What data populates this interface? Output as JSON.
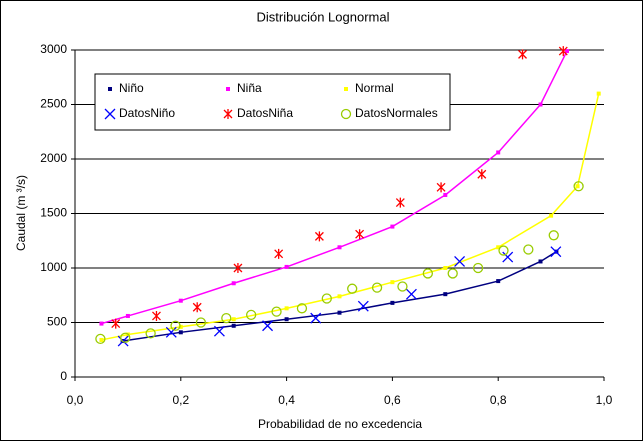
{
  "chart_data": {
    "type": "scatter",
    "title": "Distribución Lognormal",
    "x_label": "Probabilidad de no excedencia",
    "y_label": "Caudal (m ³/s)",
    "xlim": [
      0,
      1
    ],
    "ylim": [
      0,
      3000
    ],
    "xticks": [
      {
        "value": 0,
        "label": "0,0"
      },
      {
        "value": 0.2,
        "label": "0,2"
      },
      {
        "value": 0.4,
        "label": "0,4"
      },
      {
        "value": 0.6,
        "label": "0,6"
      },
      {
        "value": 0.8,
        "label": "0,8"
      },
      {
        "value": 1,
        "label": "1,0"
      }
    ],
    "yticks": [
      0,
      500,
      1000,
      1500,
      2000,
      2500,
      3000
    ],
    "grid": true,
    "series": [
      {
        "name": "Niño",
        "color": "#000080",
        "mode": "lines",
        "marker": "square",
        "x": [
          0.09,
          0.2,
          0.3,
          0.4,
          0.5,
          0.6,
          0.7,
          0.8,
          0.88,
          0.91
        ],
        "values": [
          330,
          410,
          470,
          530,
          590,
          680,
          760,
          880,
          1060,
          1150
        ]
      },
      {
        "name": "Niña",
        "color": "#ff00ff",
        "mode": "lines",
        "marker": "square",
        "x": [
          0.05,
          0.1,
          0.2,
          0.3,
          0.4,
          0.5,
          0.6,
          0.7,
          0.8,
          0.88,
          0.93
        ],
        "values": [
          490,
          560,
          700,
          860,
          1010,
          1190,
          1380,
          1670,
          2060,
          2500,
          2990
        ]
      },
      {
        "name": "Normal",
        "color": "#ffff00",
        "mode": "lines",
        "marker": "square",
        "x": [
          0.05,
          0.1,
          0.2,
          0.3,
          0.4,
          0.5,
          0.6,
          0.7,
          0.8,
          0.9,
          0.95,
          0.99
        ],
        "values": [
          340,
          390,
          460,
          530,
          630,
          740,
          870,
          1000,
          1190,
          1480,
          1750,
          2600
        ]
      },
      {
        "name": "DatosNiño",
        "color": "#0000ff",
        "mode": "markers",
        "marker": "x",
        "x": [
          0.091,
          0.182,
          0.273,
          0.364,
          0.455,
          0.545,
          0.636,
          0.727,
          0.818,
          0.909
        ],
        "values": [
          330,
          410,
          420,
          470,
          540,
          650,
          760,
          1060,
          1100,
          1150
        ]
      },
      {
        "name": "DatosNiña",
        "color": "#ff0000",
        "mode": "markers",
        "marker": "asterisk",
        "x": [
          0.077,
          0.154,
          0.231,
          0.308,
          0.385,
          0.462,
          0.538,
          0.615,
          0.692,
          0.769,
          0.846,
          0.923
        ],
        "values": [
          490,
          560,
          640,
          1000,
          1130,
          1290,
          1310,
          1600,
          1740,
          1860,
          2960,
          2990
        ]
      },
      {
        "name": "DatosNormales",
        "color": "#99cc00",
        "mode": "markers",
        "marker": "circle",
        "x": [
          0.048,
          0.095,
          0.143,
          0.19,
          0.238,
          0.286,
          0.333,
          0.381,
          0.429,
          0.476,
          0.524,
          0.571,
          0.619,
          0.667,
          0.714,
          0.762,
          0.81,
          0.857,
          0.905,
          0.952
        ],
        "values": [
          350,
          360,
          400,
          470,
          500,
          540,
          570,
          600,
          630,
          720,
          810,
          820,
          830,
          950,
          950,
          1000,
          1160,
          1170,
          1300,
          1750
        ]
      }
    ]
  }
}
